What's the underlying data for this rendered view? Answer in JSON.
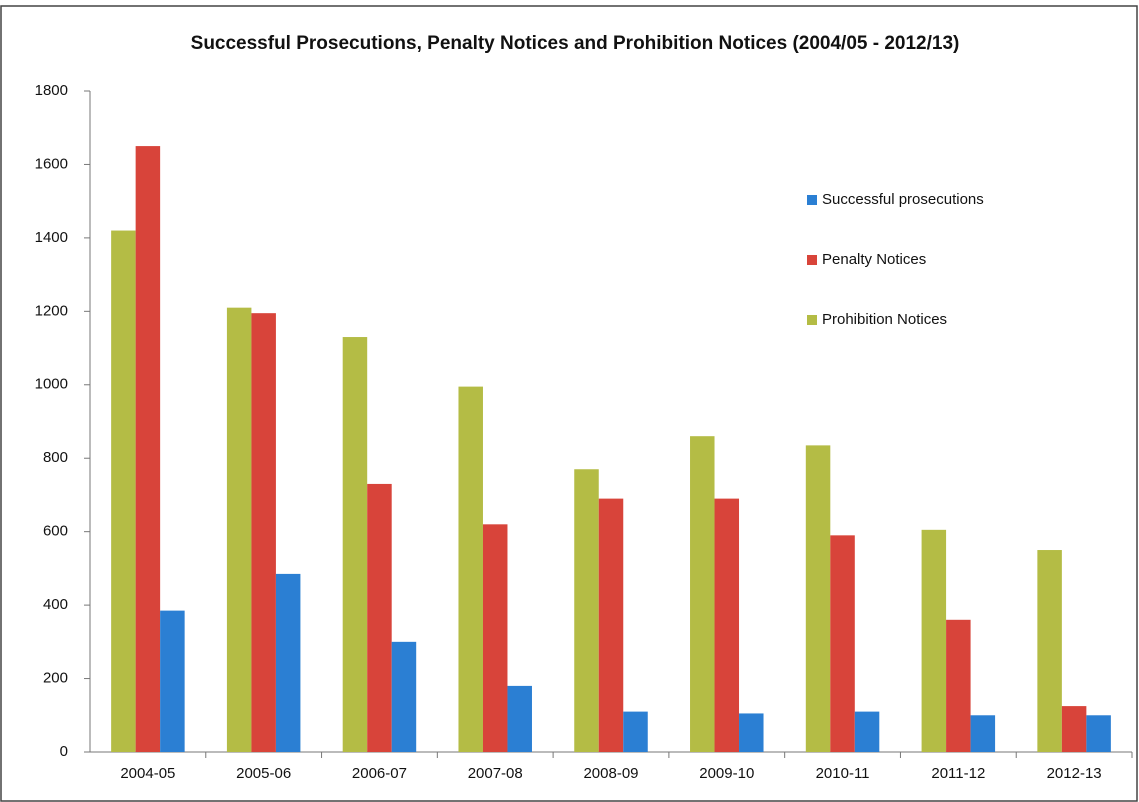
{
  "chart_data": {
    "type": "bar",
    "title": "Successful Prosecutions, Penalty Notices and Prohibition Notices (2004/05 - 2012/13)",
    "categories": [
      "2004-05",
      "2005-06",
      "2006-07",
      "2007-08",
      "2008-09",
      "2009-10",
      "2010-11",
      "2011-12",
      "2012-13"
    ],
    "series": [
      {
        "name": "Successful prosecutions",
        "color": "#2b7fd3",
        "values": [
          385,
          485,
          300,
          180,
          110,
          105,
          110,
          100,
          100
        ]
      },
      {
        "name": "Penalty Notices",
        "color": "#d8443a",
        "values": [
          1650,
          1195,
          730,
          620,
          690,
          690,
          590,
          360,
          125
        ]
      },
      {
        "name": "Prohibition Notices",
        "color": "#b4bc45",
        "values": [
          1420,
          1210,
          1130,
          995,
          770,
          860,
          835,
          605,
          550
        ]
      }
    ],
    "draw_order": [
      2,
      1,
      0
    ],
    "ylim": [
      0,
      1800
    ],
    "yticks": [
      0,
      200,
      400,
      600,
      800,
      1000,
      1200,
      1400,
      1600,
      1800
    ],
    "grid": false,
    "legend": "right"
  }
}
